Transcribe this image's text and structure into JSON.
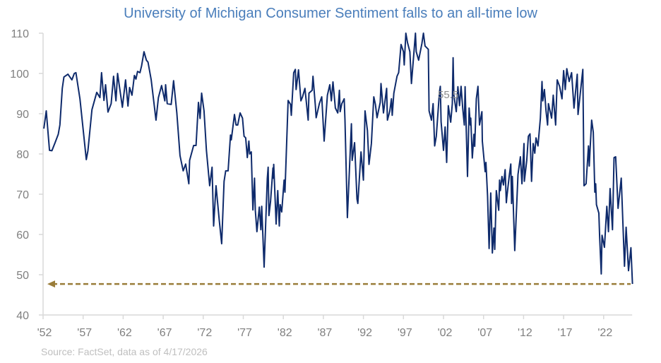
{
  "chart_data": {
    "type": "line",
    "title": "University of Michigan Consumer Sentiment falls to an all-time low",
    "source": "Source: FactSet, data as of 4/17/2026",
    "xlabel": "",
    "ylabel": "",
    "ylim": [
      40,
      110
    ],
    "yticks": [
      40,
      50,
      60,
      70,
      80,
      90,
      100,
      110
    ],
    "xlim": [
      1952,
      2026
    ],
    "xticks": [
      1952,
      1957,
      1962,
      1967,
      1972,
      1977,
      1982,
      1987,
      1992,
      1997,
      2002,
      2007,
      2012,
      2017,
      2022
    ],
    "xtick_labels": [
      "'52",
      "'57",
      "'62",
      "'67",
      "'72",
      "'77",
      "'82",
      "'87",
      "'92",
      "'97",
      "'02",
      "'07",
      "'12",
      "'17",
      "'22"
    ],
    "grid": false,
    "legend": "none",
    "annotation": "55.5",
    "reference_line": {
      "value": 47.7,
      "style": "dashed",
      "arrow": "left",
      "color": "#9a7d3a"
    },
    "colors": {
      "line": "#0e2a6b",
      "title": "#4a7ebb",
      "axis": "#d9d9d9",
      "ticks": "#7f7f7f"
    },
    "series": [
      {
        "points": [
          [
            1952.1,
            86.3
          ],
          [
            1952.4,
            90.7
          ],
          [
            1952.8,
            80.9
          ],
          [
            1953.1,
            80.8
          ],
          [
            1953.5,
            82.8
          ],
          [
            1953.9,
            84.9
          ],
          [
            1954.1,
            87.2
          ],
          [
            1954.4,
            96.3
          ],
          [
            1954.6,
            99.1
          ],
          [
            1955.1,
            99.8
          ],
          [
            1955.6,
            98.4
          ],
          [
            1955.9,
            100
          ],
          [
            1956.1,
            100.2
          ],
          [
            1956.6,
            93.7
          ],
          [
            1957.4,
            78.6
          ],
          [
            1957.6,
            80.8
          ],
          [
            1958.1,
            91
          ],
          [
            1958.7,
            95.3
          ],
          [
            1959.1,
            94
          ],
          [
            1959.3,
            100.2
          ],
          [
            1959.6,
            93.3
          ],
          [
            1959.8,
            97.2
          ],
          [
            1960.1,
            90.4
          ],
          [
            1960.5,
            92.5
          ],
          [
            1960.8,
            99.3
          ],
          [
            1961.1,
            93.2
          ],
          [
            1961.3,
            100
          ],
          [
            1961.9,
            91.6
          ],
          [
            1962.3,
            98.4
          ],
          [
            1962.6,
            91.9
          ],
          [
            1962.8,
            96.5
          ],
          [
            1963.1,
            94.6
          ],
          [
            1963.4,
            99.5
          ],
          [
            1963.6,
            98.6
          ],
          [
            1963.8,
            100.5
          ],
          [
            1964.1,
            100.2
          ],
          [
            1964.3,
            101.9
          ],
          [
            1964.6,
            105.4
          ],
          [
            1964.9,
            103.3
          ],
          [
            1965.1,
            102.8
          ],
          [
            1965.5,
            98.4
          ],
          [
            1966.1,
            88.4
          ],
          [
            1966.4,
            94
          ],
          [
            1966.8,
            97
          ],
          [
            1967.2,
            93.2
          ],
          [
            1967.3,
            97.2
          ],
          [
            1967.5,
            92.5
          ],
          [
            1968.0,
            92.3
          ],
          [
            1968.3,
            98.2
          ],
          [
            1968.7,
            90.2
          ],
          [
            1969.1,
            79.6
          ],
          [
            1969.5,
            75.8
          ],
          [
            1969.8,
            77.5
          ],
          [
            1970.2,
            72.6
          ],
          [
            1970.3,
            78.4
          ],
          [
            1970.8,
            82.1
          ],
          [
            1971.1,
            82.1
          ],
          [
            1971.4,
            92.8
          ],
          [
            1971.6,
            88.8
          ],
          [
            1971.8,
            95.1
          ],
          [
            1972.1,
            90.7
          ],
          [
            1972.4,
            80.9
          ],
          [
            1972.8,
            72.1
          ],
          [
            1973.1,
            76.7
          ],
          [
            1973.3,
            62.1
          ],
          [
            1973.6,
            72.1
          ],
          [
            1974.0,
            63.5
          ],
          [
            1974.3,
            57.7
          ],
          [
            1974.6,
            73.2
          ],
          [
            1974.8,
            75.8
          ],
          [
            1975.1,
            75.8
          ],
          [
            1975.4,
            84.7
          ],
          [
            1975.5,
            83.5
          ],
          [
            1975.9,
            89.8
          ],
          [
            1976.1,
            87.2
          ],
          [
            1976.3,
            87.2
          ],
          [
            1976.6,
            90.2
          ],
          [
            1976.9,
            88.9
          ],
          [
            1977.1,
            84.4
          ],
          [
            1977.3,
            84
          ],
          [
            1977.5,
            79.1
          ],
          [
            1977.7,
            83.2
          ],
          [
            1977.8,
            80
          ],
          [
            1978.0,
            80.5
          ],
          [
            1978.2,
            66.1
          ],
          [
            1978.4,
            74
          ],
          [
            1978.5,
            66.1
          ],
          [
            1978.7,
            60.7
          ],
          [
            1979.0,
            66.8
          ],
          [
            1979.2,
            61.2
          ],
          [
            1979.3,
            67
          ],
          [
            1979.6,
            51.9
          ],
          [
            1980.0,
            73.9
          ],
          [
            1980.1,
            76.7
          ],
          [
            1980.2,
            64.7
          ],
          [
            1980.4,
            68.2
          ],
          [
            1980.7,
            76.5
          ],
          [
            1980.75,
            74
          ],
          [
            1980.8,
            77.4
          ],
          [
            1981.1,
            62.6
          ],
          [
            1981.3,
            70.9
          ],
          [
            1981.5,
            62.1
          ],
          [
            1981.6,
            67.4
          ],
          [
            1981.8,
            65.6
          ],
          [
            1982.1,
            73.5
          ],
          [
            1982.2,
            70.5
          ],
          [
            1982.6,
            93.3
          ],
          [
            1982.9,
            92.3
          ],
          [
            1983.0,
            89.6
          ],
          [
            1983.3,
            100.2
          ],
          [
            1983.5,
            101
          ],
          [
            1983.6,
            96
          ],
          [
            1983.7,
            97.7
          ],
          [
            1983.9,
            100.9
          ],
          [
            1984.2,
            93.2
          ],
          [
            1984.4,
            94.2
          ],
          [
            1984.7,
            96.3
          ],
          [
            1985.1,
            88.4
          ],
          [
            1985.2,
            95.1
          ],
          [
            1985.6,
            95.8
          ],
          [
            1985.7,
            99.3
          ],
          [
            1986.0,
            91.9
          ],
          [
            1986.1,
            89
          ],
          [
            1986.5,
            92.5
          ],
          [
            1986.8,
            94.2
          ],
          [
            1987.1,
            83.2
          ],
          [
            1987.5,
            94.6
          ],
          [
            1987.8,
            97.2
          ],
          [
            1988.0,
            93.2
          ],
          [
            1988.2,
            97.9
          ],
          [
            1988.5,
            91.4
          ],
          [
            1988.8,
            90.2
          ],
          [
            1989.0,
            95.8
          ],
          [
            1989.1,
            90.5
          ],
          [
            1989.3,
            92.5
          ],
          [
            1989.6,
            93.7
          ],
          [
            1989.7,
            88.4
          ],
          [
            1990.0,
            64.2
          ],
          [
            1990.5,
            87.5
          ],
          [
            1990.6,
            78.4
          ],
          [
            1990.9,
            82.8
          ],
          [
            1991.2,
            68.8
          ],
          [
            1991.3,
            67.7
          ],
          [
            1991.7,
            80.5
          ],
          [
            1992.0,
            73.5
          ],
          [
            1992.2,
            90.7
          ],
          [
            1992.5,
            85.8
          ],
          [
            1992.7,
            77.4
          ],
          [
            1993.0,
            82.6
          ],
          [
            1993.3,
            94.2
          ],
          [
            1993.5,
            92.3
          ],
          [
            1993.7,
            89
          ],
          [
            1994.1,
            92.8
          ],
          [
            1994.2,
            97.5
          ],
          [
            1994.5,
            90.2
          ],
          [
            1994.9,
            96.3
          ],
          [
            1995.0,
            88.4
          ],
          [
            1995.3,
            90.7
          ],
          [
            1995.5,
            93.7
          ],
          [
            1995.6,
            89.6
          ],
          [
            1995.8,
            95.1
          ],
          [
            1996.2,
            99.3
          ],
          [
            1996.4,
            100.2
          ],
          [
            1996.7,
            107.2
          ],
          [
            1997.0,
            105.4
          ],
          [
            1997.1,
            102.1
          ],
          [
            1997.3,
            110
          ],
          [
            1997.5,
            107.7
          ],
          [
            1997.8,
            105.4
          ],
          [
            1998.0,
            97.5
          ],
          [
            1998.2,
            102.5
          ],
          [
            1998.5,
            110
          ],
          [
            1998.6,
            105.4
          ],
          [
            1998.9,
            103.3
          ],
          [
            1999.3,
            107.4
          ],
          [
            1999.5,
            110
          ],
          [
            1999.7,
            106.8
          ],
          [
            2000.1,
            106
          ],
          [
            2000.2,
            90.7
          ],
          [
            2000.5,
            88.4
          ],
          [
            2000.7,
            92.5
          ],
          [
            2000.9,
            82
          ],
          [
            2001.1,
            84.4
          ],
          [
            2001.5,
            95.4
          ],
          [
            2001.6,
            96.8
          ],
          [
            2001.7,
            88
          ],
          [
            2002.0,
            80.9
          ],
          [
            2002.2,
            86.7
          ],
          [
            2002.4,
            77.9
          ],
          [
            2002.6,
            92
          ],
          [
            2002.9,
            87.9
          ],
          [
            2003.1,
            92.5
          ],
          [
            2003.2,
            103.9
          ],
          [
            2003.3,
            94.6
          ],
          [
            2003.6,
            90.5
          ],
          [
            2003.8,
            96.7
          ],
          [
            2004.0,
            92
          ],
          [
            2004.2,
            96.8
          ],
          [
            2004.4,
            91.4
          ],
          [
            2004.6,
            87.2
          ],
          [
            2004.7,
            96.7
          ],
          [
            2005.0,
            74.4
          ],
          [
            2005.2,
            91.4
          ],
          [
            2005.35,
            87.2
          ],
          [
            2005.4,
            88.9
          ],
          [
            2005.6,
            79
          ],
          [
            2005.8,
            84.9
          ],
          [
            2005.9,
            81.9
          ],
          [
            2006.1,
            93.7
          ],
          [
            2006.3,
            96.8
          ],
          [
            2006.5,
            87.2
          ],
          [
            2006.8,
            90.5
          ],
          [
            2006.85,
            83.2
          ],
          [
            2007.2,
            75.6
          ],
          [
            2007.3,
            77.9
          ],
          [
            2007.5,
            69.6
          ],
          [
            2007.7,
            56.5
          ],
          [
            2007.9,
            70.3
          ],
          [
            2008.1,
            55.4
          ],
          [
            2008.3,
            61.6
          ],
          [
            2008.4,
            56.3
          ],
          [
            2008.6,
            70.9
          ],
          [
            2008.9,
            66
          ],
          [
            2009.0,
            73.5
          ],
          [
            2009.1,
            70.9
          ],
          [
            2009.3,
            74.4
          ],
          [
            2009.5,
            72.3
          ],
          [
            2009.7,
            76.1
          ],
          [
            2009.85,
            67.9
          ],
          [
            2009.9,
            69.1
          ],
          [
            2010.2,
            74.4
          ],
          [
            2010.4,
            77.5
          ],
          [
            2010.5,
            67.7
          ],
          [
            2010.6,
            74.4
          ],
          [
            2010.9,
            56
          ],
          [
            2011.3,
            74.9
          ],
          [
            2011.6,
            79.3
          ],
          [
            2011.8,
            72.6
          ],
          [
            2012.05,
            82.6
          ],
          [
            2012.1,
            73.2
          ],
          [
            2012.4,
            78.4
          ],
          [
            2012.6,
            84.4
          ],
          [
            2012.8,
            85
          ],
          [
            2013.0,
            73.2
          ],
          [
            2013.2,
            82.6
          ],
          [
            2013.4,
            80.2
          ],
          [
            2013.55,
            84
          ],
          [
            2013.8,
            82
          ],
          [
            2014.1,
            88.9
          ],
          [
            2014.3,
            98
          ],
          [
            2014.4,
            93.2
          ],
          [
            2014.6,
            96
          ],
          [
            2014.8,
            90.7
          ],
          [
            2015.0,
            87.2
          ],
          [
            2015.1,
            92.5
          ],
          [
            2015.5,
            88.9
          ],
          [
            2015.7,
            94.6
          ],
          [
            2016.0,
            87.2
          ],
          [
            2016.2,
            98.4
          ],
          [
            2016.5,
            96.8
          ],
          [
            2016.8,
            93.7
          ],
          [
            2017.0,
            100.7
          ],
          [
            2017.2,
            96
          ],
          [
            2017.4,
            101.2
          ],
          [
            2017.7,
            98
          ],
          [
            2018.0,
            100.2
          ],
          [
            2018.3,
            91.4
          ],
          [
            2018.7,
            99.8
          ],
          [
            2018.8,
            89.8
          ],
          [
            2019.4,
            101
          ],
          [
            2019.55,
            72.1
          ],
          [
            2019.8,
            72.6
          ],
          [
            2020.1,
            82
          ],
          [
            2020.2,
            77
          ],
          [
            2020.3,
            80.9
          ],
          [
            2020.5,
            88.4
          ],
          [
            2020.7,
            85.4
          ],
          [
            2020.9,
            70.5
          ],
          [
            2021.0,
            72.6
          ],
          [
            2021.1,
            67.4
          ],
          [
            2021.4,
            65.3
          ],
          [
            2021.5,
            59.5
          ],
          [
            2021.7,
            50.2
          ],
          [
            2021.8,
            59.8
          ],
          [
            2022.1,
            56.8
          ],
          [
            2022.4,
            67
          ],
          [
            2022.6,
            60.7
          ],
          [
            2022.8,
            71.4
          ],
          [
            2023.1,
            61.2
          ],
          [
            2023.3,
            79.1
          ],
          [
            2023.5,
            79.3
          ],
          [
            2023.8,
            66.5
          ],
          [
            2024.0,
            70.3
          ],
          [
            2024.2,
            74
          ],
          [
            2024.6,
            52.1
          ],
          [
            2024.8,
            61.8
          ],
          [
            2025.1,
            51
          ],
          [
            2025.4,
            56.7
          ],
          [
            2025.6,
            47.7
          ]
        ]
      }
    ]
  }
}
